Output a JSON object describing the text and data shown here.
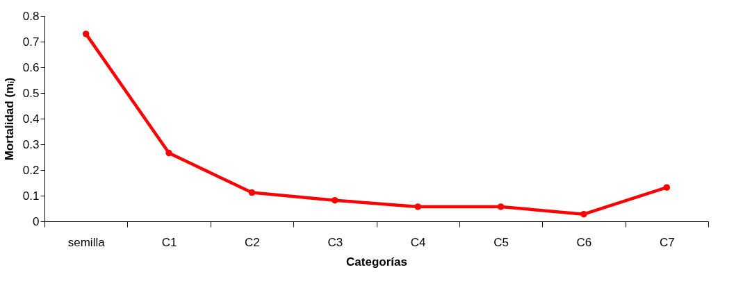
{
  "chart_data": {
    "type": "line",
    "xlabel": "Categorías",
    "ylabel": "Mortalidad (mᵢ)",
    "categories": [
      "semilla",
      "C1",
      "C2",
      "C3",
      "C4",
      "C5",
      "C6",
      "C7"
    ],
    "series": [
      {
        "color": "#ff0000",
        "values": [
          0.73,
          0.266,
          0.112,
          0.082,
          0.057,
          0.057,
          0.028,
          0.132
        ]
      }
    ],
    "ylim": [
      0,
      0.8
    ],
    "yticks": [
      0,
      0.1,
      0.2,
      0.3,
      0.4,
      0.5,
      0.6,
      0.7,
      0.8
    ],
    "grid": false,
    "marker": "circle",
    "line_style": "solid"
  }
}
